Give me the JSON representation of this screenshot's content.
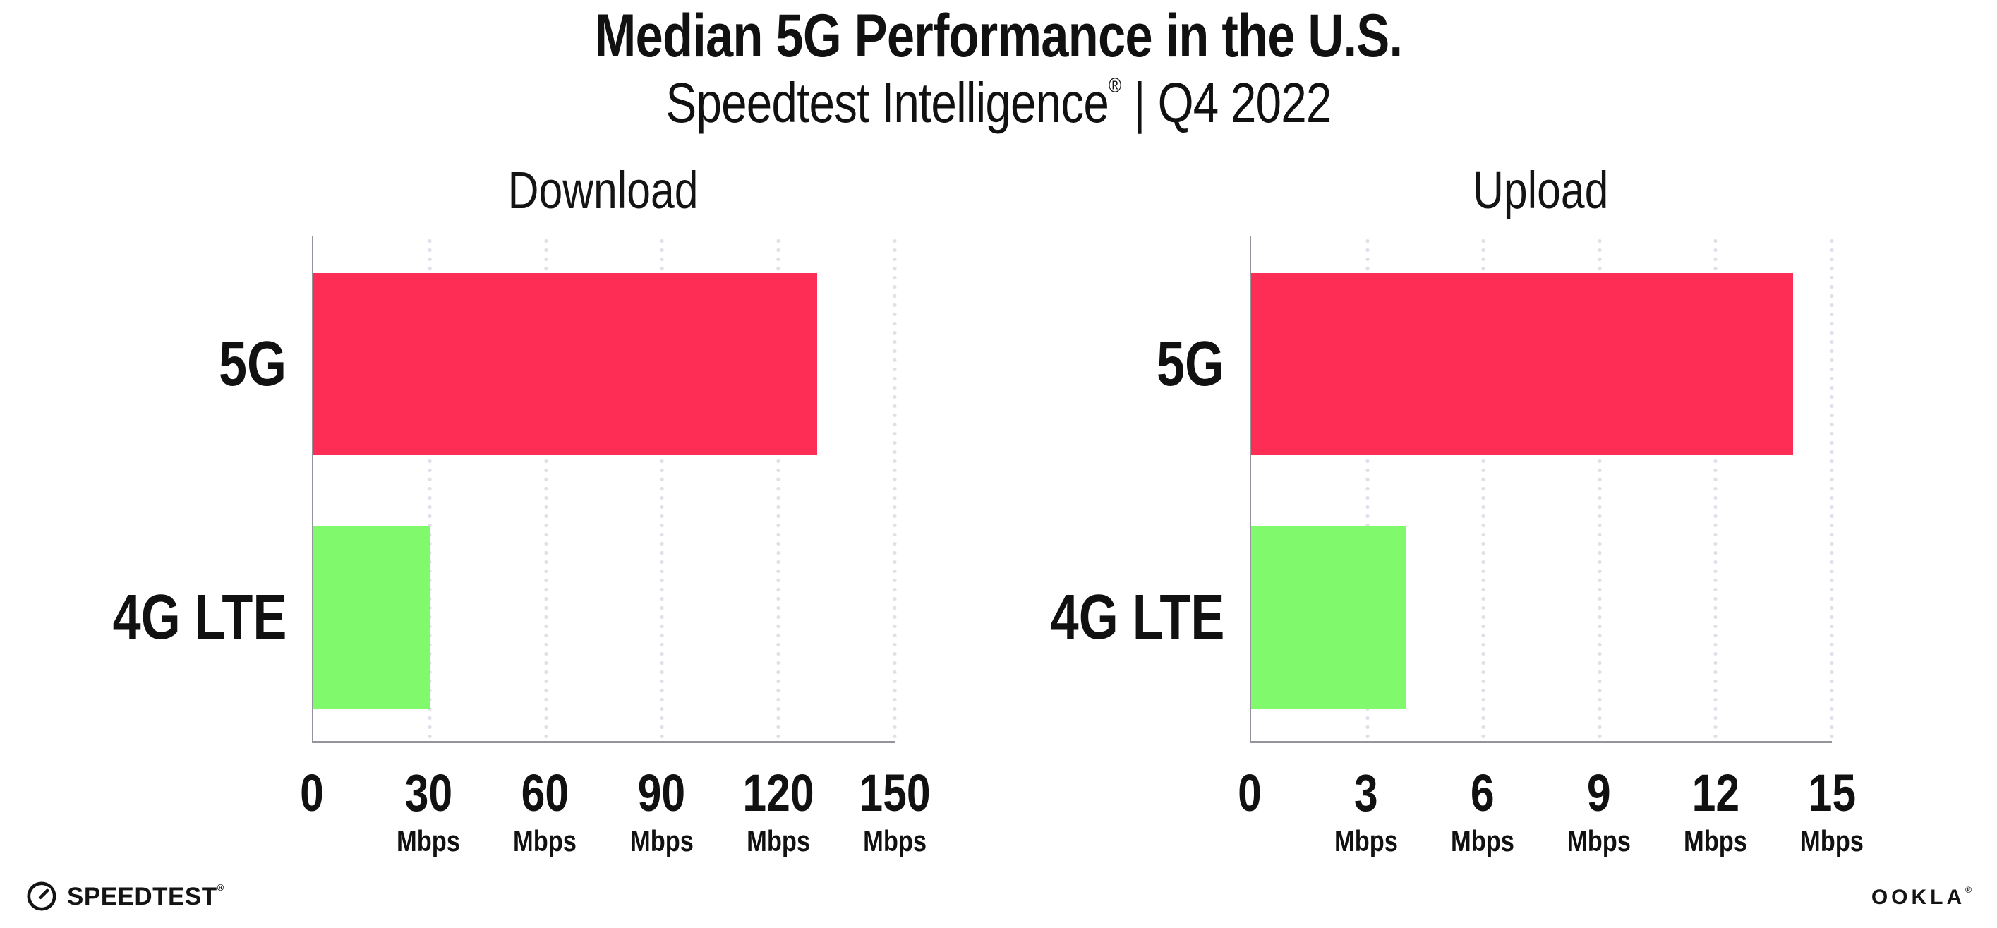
{
  "header": {
    "title": "Median 5G Performance in the U.S.",
    "subtitle_brand": "Speedtest Intelligence",
    "subtitle_reg_mark": "®",
    "subtitle_separator": "|",
    "subtitle_period": "Q4 2022"
  },
  "chart_data": [
    {
      "type": "bar",
      "orientation": "horizontal",
      "title": "Download",
      "categories": [
        "5G",
        "4G LTE"
      ],
      "values": [
        130,
        30
      ],
      "unit": "Mbps",
      "xlim": [
        0,
        150
      ],
      "xticks": [
        0,
        30,
        60,
        90,
        120,
        150
      ],
      "xtick_unit_label": "Mbps",
      "bar_colors": [
        "#FD2D55",
        "#80FA6C"
      ],
      "grid": "vertical-dotted",
      "legend": "none"
    },
    {
      "type": "bar",
      "orientation": "horizontal",
      "title": "Upload",
      "categories": [
        "5G",
        "4G LTE"
      ],
      "values": [
        14,
        4
      ],
      "unit": "Mbps",
      "xlim": [
        0,
        15
      ],
      "xticks": [
        0,
        3,
        6,
        9,
        12,
        15
      ],
      "xtick_unit_label": "Mbps",
      "bar_colors": [
        "#FD2D55",
        "#80FA6C"
      ],
      "grid": "vertical-dotted",
      "legend": "none"
    }
  ],
  "colors": {
    "bar_5g": "#FD2D55",
    "bar_4g_lte": "#80FA6C",
    "axis_line": "#94949C",
    "gridline_dots": "#DFDFEA",
    "text": "#111111"
  },
  "footer": {
    "speedtest_logo_text": "SPEEDTEST",
    "speedtest_trademark": "®",
    "ookla_logo_text": "OOKLA",
    "ookla_trademark": "®"
  }
}
